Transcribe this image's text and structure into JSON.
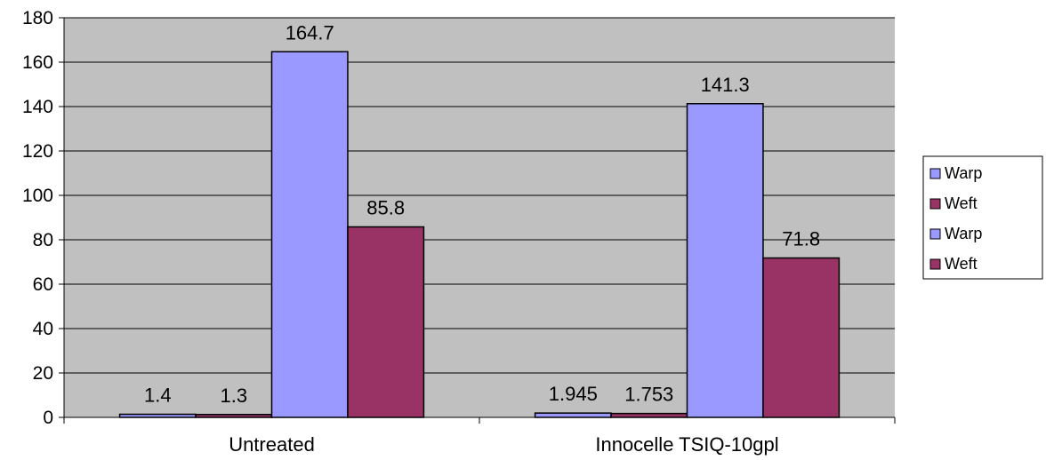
{
  "chart_data": {
    "type": "bar",
    "categories": [
      "Untreated",
      "Innocelle TSIQ-10gpl"
    ],
    "series": [
      {
        "name": "Warp",
        "values": [
          1.4,
          1.945
        ],
        "labels": [
          "1.4",
          "1.945"
        ],
        "color": "#9999ff"
      },
      {
        "name": "Weft",
        "values": [
          1.3,
          1.753
        ],
        "labels": [
          "1.3",
          "1.753"
        ],
        "color": "#993366"
      },
      {
        "name": "Warp",
        "values": [
          164.7,
          141.3
        ],
        "labels": [
          "164.7",
          "141.3"
        ],
        "color": "#9999ff"
      },
      {
        "name": "Weft",
        "values": [
          85.8,
          71.8
        ],
        "labels": [
          "85.8",
          "71.8"
        ],
        "color": "#993366"
      }
    ],
    "ylim": [
      0,
      180
    ],
    "yticks": [
      0,
      20,
      40,
      60,
      80,
      100,
      120,
      140,
      160,
      180
    ],
    "grid": true,
    "plot_background": "#c0c0c0",
    "legend_position": "right"
  }
}
